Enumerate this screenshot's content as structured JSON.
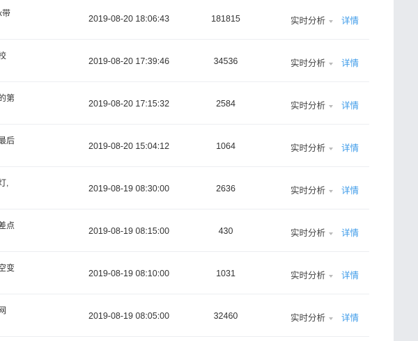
{
  "colors": {
    "link": "#3d9be9",
    "sidebar": "#e8eaed"
  },
  "rows": [
    {
      "title": "x带",
      "time": "2019-08-20 18:06:43",
      "count": "181815",
      "analysis": "实时分析",
      "detail": "详情"
    },
    {
      "title": "校",
      "time": "2019-08-20 17:39:46",
      "count": "34536",
      "analysis": "实时分析",
      "detail": "详情"
    },
    {
      "title": "的第",
      "time": "2019-08-20 17:15:32",
      "count": "2584",
      "analysis": "实时分析",
      "detail": "详情"
    },
    {
      "title": "最后",
      "time": "2019-08-20 15:04:12",
      "count": "1064",
      "analysis": "实时分析",
      "detail": "详情"
    },
    {
      "title": "灯,",
      "time": "2019-08-19 08:30:00",
      "count": "2636",
      "analysis": "实时分析",
      "detail": "详情"
    },
    {
      "title": "差点",
      "time": "2019-08-19 08:15:00",
      "count": "430",
      "analysis": "实时分析",
      "detail": "详情"
    },
    {
      "title": "空变",
      "time": "2019-08-19 08:10:00",
      "count": "1031",
      "analysis": "实时分析",
      "detail": "详情"
    },
    {
      "title": "网",
      "time": "2019-08-19 08:05:00",
      "count": "32460",
      "analysis": "实时分析",
      "detail": "详情"
    }
  ]
}
